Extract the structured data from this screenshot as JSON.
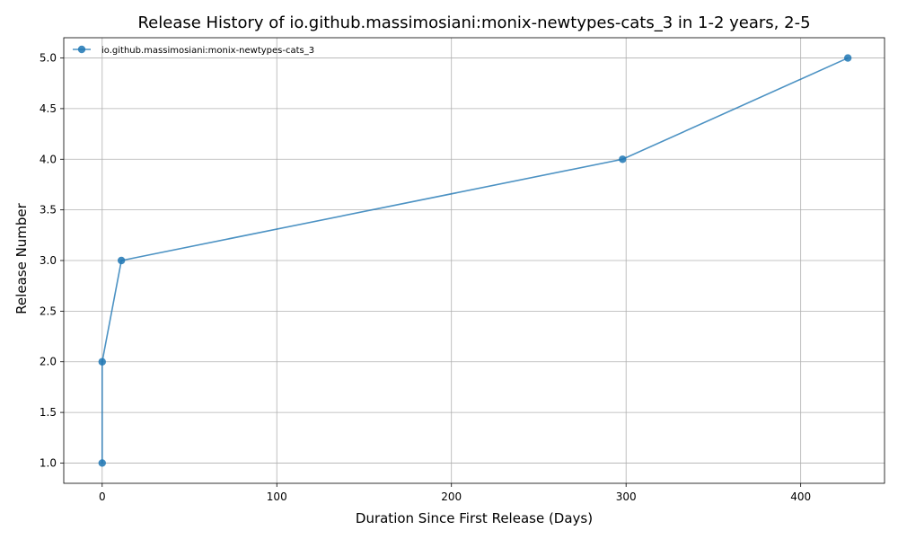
{
  "chart_data": {
    "type": "line",
    "title": "Release History of io.github.massimosiani:monix-newtypes-cats_3 in 1-2 years, 2-5",
    "xlabel": "Duration Since First Release (Days)",
    "ylabel": "Release Number",
    "xlim": [
      -22,
      448
    ],
    "ylim": [
      0.8,
      5.2
    ],
    "xticks": [
      0,
      100,
      200,
      300,
      400
    ],
    "yticks": [
      1.0,
      1.5,
      2.0,
      2.5,
      3.0,
      3.5,
      4.0,
      4.5,
      5.0
    ],
    "xtick_labels": [
      "0",
      "100",
      "200",
      "300",
      "400"
    ],
    "ytick_labels": [
      "1.0",
      "1.5",
      "2.0",
      "2.5",
      "3.0",
      "3.5",
      "4.0",
      "4.5",
      "5.0"
    ],
    "grid": true,
    "legend_position": "top-left",
    "series": [
      {
        "name": "io.github.massimosiani:monix-newtypes-cats_3",
        "color": "#1f77b4",
        "x": [
          0,
          0,
          11,
          298,
          427
        ],
        "y": [
          1,
          2,
          3,
          4,
          5
        ]
      }
    ]
  }
}
